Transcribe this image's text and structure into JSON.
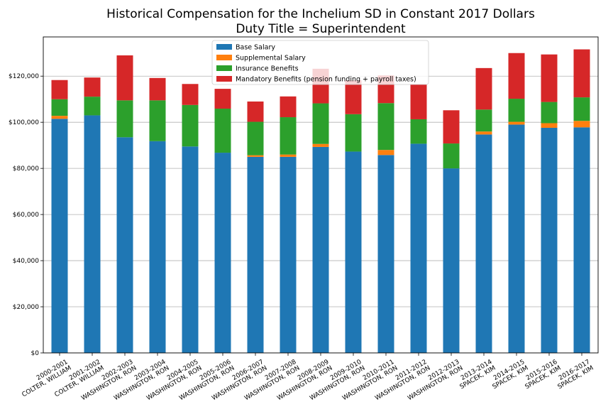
{
  "chart_data": {
    "type": "bar",
    "stacked": true,
    "title": "Historical Compensation for the Inchelium SD in Constant 2017 Dollars",
    "subtitle": "Duty Title = Superintendent",
    "xlabel": "",
    "ylabel": "",
    "ylim": [
      0,
      137000
    ],
    "yticks": [
      0,
      20000,
      40000,
      60000,
      80000,
      100000,
      120000
    ],
    "ytick_labels": [
      "$0",
      "$20,000",
      "$40,000",
      "$60,000",
      "$80,000",
      "$100,000",
      "$120,000"
    ],
    "grid": "horizontal",
    "legend_position": "top-center",
    "categories": [
      [
        "2000-2001",
        "COLTER, WILLIAM"
      ],
      [
        "2001-2002",
        "COLTER, WILLIAM"
      ],
      [
        "2002-2003",
        "WASHINGTON, RON"
      ],
      [
        "2003-2004",
        "WASHINGTON, RON"
      ],
      [
        "2004-2005",
        "WASHINGTON, RON"
      ],
      [
        "2005-2006",
        "WASHINGTON, RON"
      ],
      [
        "2006-2007",
        "WASHINGTON, RON"
      ],
      [
        "2007-2008",
        "WASHINGTON, RON"
      ],
      [
        "2008-2009",
        "WASHINGTON, RON"
      ],
      [
        "2009-2010",
        "WASHINGTON, RON"
      ],
      [
        "2010-2011",
        "WASHINGTON, RON"
      ],
      [
        "2011-2012",
        "WASHINGTON, RON"
      ],
      [
        "2012-2013",
        "WASHINGTON, RON"
      ],
      [
        "2013-2014",
        "SPACEK, KIM"
      ],
      [
        "2014-2015",
        "SPACEK, KIM"
      ],
      [
        "2015-2016",
        "SPACEK, KIM"
      ],
      [
        "2016-2017",
        "SPACEK, KIM"
      ]
    ],
    "series": [
      {
        "name": "Base Salary",
        "color": "#1f77b4",
        "values": [
          101500,
          103000,
          93500,
          91800,
          89500,
          86800,
          85000,
          85000,
          89300,
          87300,
          85800,
          90700,
          80000,
          94700,
          99000,
          97600,
          97800
        ]
      },
      {
        "name": "Supplemental Salary",
        "color": "#ff7f0e",
        "values": [
          1300,
          0,
          0,
          0,
          0,
          0,
          700,
          1000,
          1300,
          0,
          2200,
          0,
          0,
          1300,
          1200,
          2000,
          2800
        ]
      },
      {
        "name": "Insurance Benefits",
        "color": "#2ca02c",
        "values": [
          7200,
          8100,
          16000,
          17700,
          18000,
          19100,
          14500,
          16200,
          17600,
          16200,
          20300,
          10600,
          10800,
          9500,
          10000,
          9200,
          10200
        ]
      },
      {
        "name": "Mandatory Benefits (pension funding + payroll taxes)",
        "color": "#d62728",
        "values": [
          8300,
          8300,
          19500,
          9700,
          9100,
          8600,
          8800,
          9000,
          15000,
          14700,
          12000,
          15100,
          14400,
          18000,
          19800,
          20600,
          20800
        ]
      }
    ]
  }
}
